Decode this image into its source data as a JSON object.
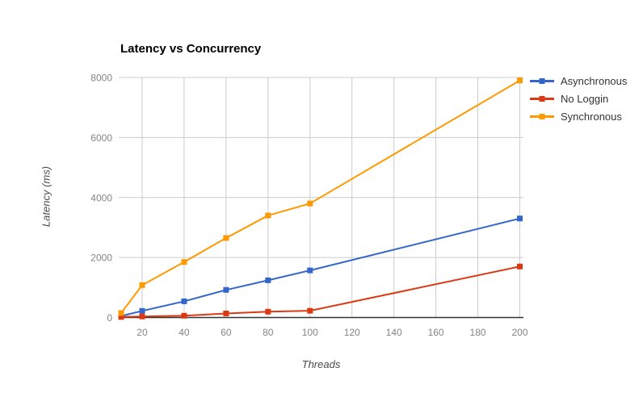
{
  "chart_data": {
    "type": "line",
    "title": "Latency vs Concurrency",
    "xlabel": "Threads",
    "ylabel": "Latency (ms)",
    "x": [
      10,
      20,
      40,
      60,
      80,
      100,
      200
    ],
    "series": [
      {
        "name": "Asynchronous",
        "color": "#3366CC",
        "values": [
          50,
          220,
          540,
          920,
          1240,
          1570,
          3300
        ]
      },
      {
        "name": "No Loggin",
        "color": "#DC3912",
        "values": [
          20,
          35,
          60,
          135,
          195,
          225,
          1700
        ]
      },
      {
        "name": "Synchronous",
        "color": "#FF9900",
        "values": [
          150,
          1080,
          1850,
          2650,
          3400,
          3800,
          7900
        ]
      }
    ],
    "x_ticks": [
      20,
      40,
      60,
      80,
      100,
      120,
      140,
      160,
      180,
      200
    ],
    "y_ticks": [
      0,
      2000,
      4000,
      6000,
      8000
    ],
    "xlim": [
      10,
      200
    ],
    "ylim": [
      0,
      8000
    ],
    "grid": true,
    "legend_position": "right",
    "marker_shape": "square"
  },
  "colors": {
    "background": "#ffffff",
    "gridline": "#cccccc",
    "axis_line": "#333333",
    "tick_label": "#848484",
    "axis_title": "#4a4a4a",
    "legend_text": "#333333",
    "title_text": "#000000"
  }
}
